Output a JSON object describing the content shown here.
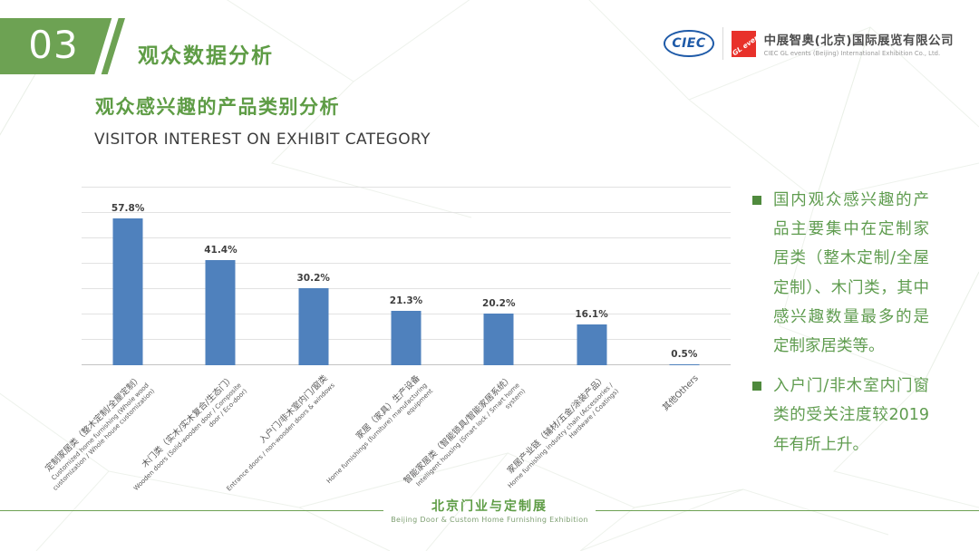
{
  "header": {
    "section_number": "03",
    "section_title": "观众数据分析"
  },
  "logo": {
    "ciec": "CIEC",
    "gl_events": "GL events",
    "company_zh": "中展智奥(北京)国际展览有限公司",
    "company_en": "CIEC GL events (Beijing) International Exhibition Co., Ltd."
  },
  "headings": {
    "zh": "观众感兴趣的产品类别分析",
    "en": "VISITOR INTEREST ON EXHIBIT CATEGORY"
  },
  "chart_data": {
    "type": "bar",
    "title": "VISITOR INTEREST ON EXHIBIT CATEGORY",
    "categories": [
      {
        "zh": "定制家居类（整木定制/全屋定制）",
        "en": "Customized home furnishing (Whole wood customization / Whole house customization)"
      },
      {
        "zh": "木门类（实木/实木复合/生态门）",
        "en": "Wooden doors (Solid-wooden door / Composite door / Eco-door)"
      },
      {
        "zh": "入户门/非木室内门/窗类",
        "en": "Entrance doors / non-wooden doors & windows"
      },
      {
        "zh": "家居（家具）生产设备",
        "en": "Home furnishings (furniture) manufacturing equipment"
      },
      {
        "zh": "智能家居类（智能锁具/智能家居系统）",
        "en": "Intelligent housing (Smart lock / Smart home system)"
      },
      {
        "zh": "家居产业链（辅材/五金/涂装产品）",
        "en": "Home furnishing industry chain (Accessories / Hardware / Coatings)"
      },
      {
        "zh": "其他Others",
        "en": ""
      }
    ],
    "values": [
      57.8,
      41.4,
      30.2,
      21.3,
      20.2,
      16.1,
      0.5
    ],
    "data_labels": [
      "57.8%",
      "41.4%",
      "30.2%",
      "21.3%",
      "20.2%",
      "16.1%",
      "0.5%"
    ],
    "unit": "%",
    "xlabel": "",
    "ylabel": "",
    "ylim": [
      0,
      70
    ],
    "gridline_step": 10,
    "grid": true,
    "legend": false,
    "bar_color": "#4F81BD"
  },
  "notes": {
    "items": [
      "国内观众感兴趣的产品主要集中在定制家居类（整木定制/全屋定制）、木门类，其中感兴趣数量最多的是定制家居类等。",
      "入户门/非木室内门窗类的受关注度较2019年有所上升。"
    ]
  },
  "footer": {
    "title_zh": "北京门业与定制展",
    "title_en": "Beijing Door & Custom Home Furnishing Exhibition"
  },
  "colors": {
    "green": "#6DA253",
    "green_text": "#5E9C45",
    "note_green": "#5F9C4F",
    "bullet_green": "#4F8A3D",
    "bar_blue": "#4F81BD",
    "gl_red": "#E8312A",
    "ciec_blue": "#1E5AA8",
    "heading_dark": "#3D3D3D",
    "axis_text": "#595959",
    "gridline": "#E2E2E2"
  }
}
